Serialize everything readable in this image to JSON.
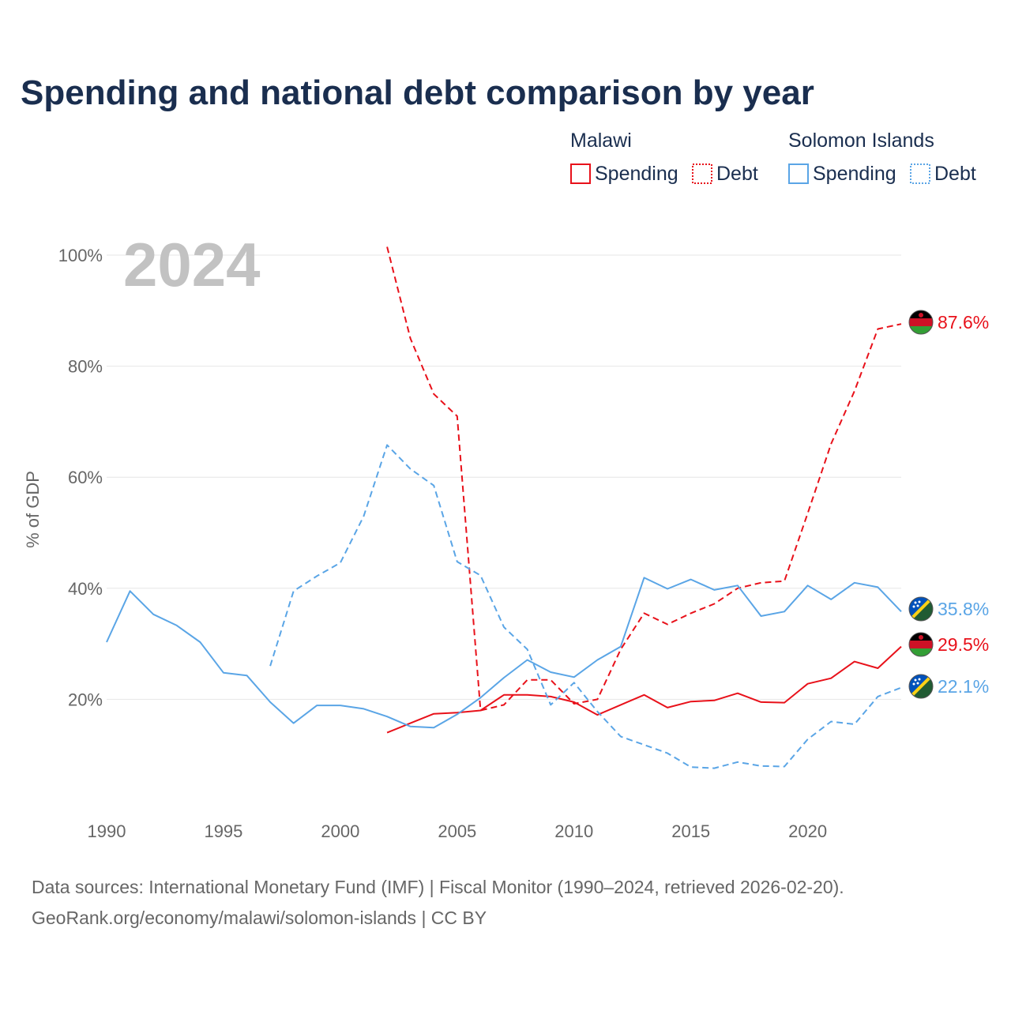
{
  "chart_data": {
    "type": "line",
    "title": "Spending and national debt comparison by year",
    "year_label": "2024",
    "ylabel": "% of GDP",
    "xlabel": "",
    "xlim": [
      1990,
      2024
    ],
    "ylim": [
      0,
      100
    ],
    "x_ticks": [
      1990,
      1995,
      2000,
      2005,
      2010,
      2015,
      2020
    ],
    "y_ticks": [
      {
        "value": 20,
        "label": "20%"
      },
      {
        "value": 40,
        "label": "40%"
      },
      {
        "value": 60,
        "label": "60%"
      },
      {
        "value": 80,
        "label": "80%"
      },
      {
        "value": 100,
        "label": "100%"
      }
    ],
    "grid": true,
    "legend": {
      "placement": "top-right",
      "groups": [
        {
          "name": "Malawi",
          "items": [
            "Spending",
            "Debt"
          ],
          "color": "#e8111a"
        },
        {
          "name": "Solomon Islands",
          "items": [
            "Spending",
            "Debt"
          ],
          "color": "#5aa5e6"
        }
      ]
    },
    "series": [
      {
        "name": "Malawi Debt",
        "country": "Malawi",
        "measure": "Debt",
        "color": "#e8111a",
        "dashed": true,
        "flag": "malawi",
        "end_label": "87.6%",
        "points": [
          [
            2002,
            101.5
          ],
          [
            2003,
            85
          ],
          [
            2004,
            75
          ],
          [
            2005,
            71
          ],
          [
            2006,
            18
          ],
          [
            2007,
            19
          ],
          [
            2008,
            23.5
          ],
          [
            2009,
            23.5
          ],
          [
            2010,
            19.2
          ],
          [
            2011,
            20
          ],
          [
            2012,
            29
          ],
          [
            2013,
            35.5
          ],
          [
            2014,
            33.5
          ],
          [
            2015,
            35.5
          ],
          [
            2016,
            37.2
          ],
          [
            2017,
            40
          ],
          [
            2018,
            41
          ],
          [
            2019,
            41.3
          ],
          [
            2020,
            53.5
          ],
          [
            2021,
            66
          ],
          [
            2022,
            75.5
          ],
          [
            2023,
            86.7
          ],
          [
            2024,
            87.6
          ]
        ]
      },
      {
        "name": "Malawi Spending",
        "country": "Malawi",
        "measure": "Spending",
        "color": "#e8111a",
        "dashed": false,
        "flag": "malawi",
        "end_label": "29.5%",
        "points": [
          [
            2002,
            14
          ],
          [
            2003,
            15.7
          ],
          [
            2004,
            17.4
          ],
          [
            2005,
            17.6
          ],
          [
            2006,
            18
          ],
          [
            2007,
            20.8
          ],
          [
            2008,
            20.8
          ],
          [
            2009,
            20.5
          ],
          [
            2010,
            19.5
          ],
          [
            2011,
            17.2
          ],
          [
            2012,
            19
          ],
          [
            2013,
            20.8
          ],
          [
            2014,
            18.5
          ],
          [
            2015,
            19.6
          ],
          [
            2016,
            19.8
          ],
          [
            2017,
            21.1
          ],
          [
            2018,
            19.5
          ],
          [
            2019,
            19.4
          ],
          [
            2020,
            22.8
          ],
          [
            2021,
            23.8
          ],
          [
            2022,
            26.8
          ],
          [
            2023,
            25.6
          ],
          [
            2024,
            29.5
          ]
        ]
      },
      {
        "name": "Solomon Islands Spending",
        "country": "Solomon Islands",
        "measure": "Spending",
        "color": "#5aa5e6",
        "dashed": false,
        "flag": "solomon",
        "end_label": "35.8%",
        "points": [
          [
            1990,
            30.3
          ],
          [
            1991,
            39.5
          ],
          [
            1992,
            35.3
          ],
          [
            1993,
            33.3
          ],
          [
            1994,
            30.3
          ],
          [
            1995,
            24.8
          ],
          [
            1996,
            24.3
          ],
          [
            1997,
            19.5
          ],
          [
            1998,
            15.7
          ],
          [
            1999,
            18.9
          ],
          [
            2000,
            18.9
          ],
          [
            2001,
            18.3
          ],
          [
            2002,
            16.9
          ],
          [
            2003,
            15.1
          ],
          [
            2004,
            14.9
          ],
          [
            2005,
            17.3
          ],
          [
            2006,
            20.3
          ],
          [
            2007,
            23.9
          ],
          [
            2008,
            27.1
          ],
          [
            2009,
            24.9
          ],
          [
            2010,
            24
          ],
          [
            2011,
            27.1
          ],
          [
            2012,
            29.5
          ],
          [
            2013,
            41.9
          ],
          [
            2014,
            39.9
          ],
          [
            2015,
            41.6
          ],
          [
            2016,
            39.7
          ],
          [
            2017,
            40.5
          ],
          [
            2018,
            35
          ],
          [
            2019,
            35.8
          ],
          [
            2020,
            40.5
          ],
          [
            2021,
            38
          ],
          [
            2022,
            41
          ],
          [
            2023,
            40.2
          ],
          [
            2024,
            35.8
          ]
        ]
      },
      {
        "name": "Solomon Islands Debt",
        "country": "Solomon Islands",
        "measure": "Debt",
        "color": "#5aa5e6",
        "dashed": true,
        "flag": "solomon",
        "end_label": "22.1%",
        "points": [
          [
            1997,
            26
          ],
          [
            1998,
            39.5
          ],
          [
            1999,
            42.2
          ],
          [
            2000,
            44.6
          ],
          [
            2001,
            53
          ],
          [
            2002,
            65.8
          ],
          [
            2003,
            61.5
          ],
          [
            2004,
            58.5
          ],
          [
            2005,
            44.8
          ],
          [
            2006,
            42.3
          ],
          [
            2007,
            33
          ],
          [
            2008,
            29
          ],
          [
            2009,
            19
          ],
          [
            2010,
            23
          ],
          [
            2011,
            17.8
          ],
          [
            2012,
            13.3
          ],
          [
            2013,
            11.8
          ],
          [
            2014,
            10.3
          ],
          [
            2015,
            7.8
          ],
          [
            2016,
            7.6
          ],
          [
            2017,
            8.7
          ],
          [
            2018,
            8
          ],
          [
            2019,
            7.9
          ],
          [
            2020,
            12.8
          ],
          [
            2021,
            16
          ],
          [
            2022,
            15.5
          ],
          [
            2023,
            20.5
          ],
          [
            2024,
            22.1
          ]
        ]
      }
    ],
    "source_lines": [
      "Data sources: International Monetary Fund (IMF) | Fiscal Monitor (1990–2024, retrieved 2026-02-20).",
      "GeoRank.org/economy/malawi/solomon-islands | CC BY"
    ]
  }
}
